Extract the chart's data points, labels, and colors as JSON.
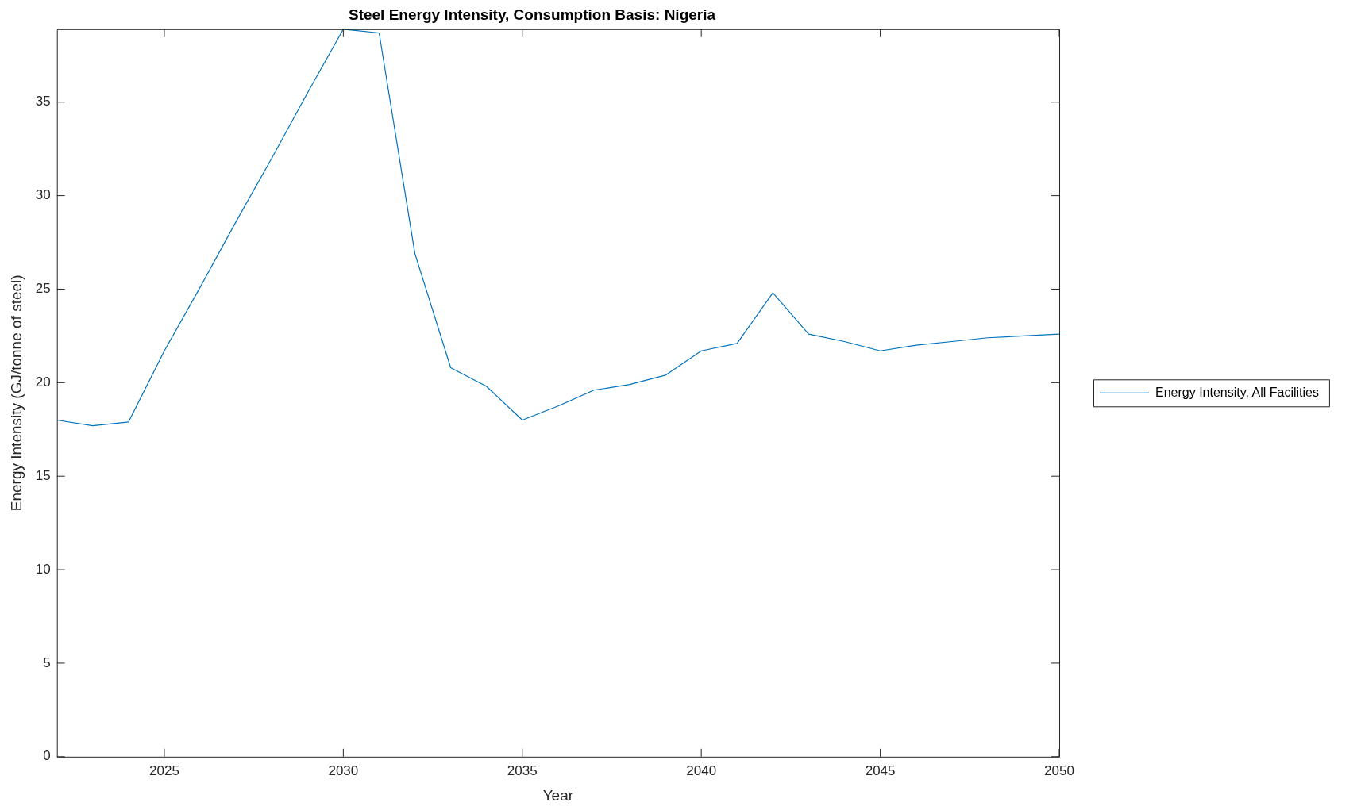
{
  "chart_data": {
    "type": "line",
    "title": "Steel Energy Intensity, Consumption Basis: Nigeria",
    "xlabel": "Year",
    "ylabel": "Energy Intensity (GJ/tonne of steel)",
    "x": [
      2022,
      2023,
      2024,
      2025,
      2026,
      2027,
      2028,
      2029,
      2030,
      2031,
      2032,
      2033,
      2034,
      2035,
      2036,
      2037,
      2038,
      2039,
      2040,
      2041,
      2042,
      2043,
      2044,
      2045,
      2046,
      2047,
      2048,
      2049,
      2050
    ],
    "series": [
      {
        "name": "Energy Intensity, All Facilities",
        "color": "#0072bd",
        "values": [
          18.0,
          17.7,
          17.9,
          21.7,
          25.1,
          28.6,
          32.0,
          35.5,
          38.9,
          38.7,
          26.9,
          20.8,
          19.8,
          18.0,
          18.75,
          19.6,
          19.9,
          20.4,
          21.7,
          22.1,
          24.8,
          22.6,
          22.2,
          21.7,
          22.0,
          22.2,
          22.4,
          22.5,
          22.6
        ]
      }
    ],
    "xlim": [
      2022,
      2050
    ],
    "xticks": [
      2025,
      2030,
      2035,
      2040,
      2045,
      2050
    ],
    "ylim": [
      0,
      38.9
    ],
    "yticks": [
      0,
      5,
      10,
      15,
      20,
      25,
      30,
      35
    ],
    "grid": false,
    "legend": "right",
    "marker": "none",
    "line_style": "solid"
  }
}
